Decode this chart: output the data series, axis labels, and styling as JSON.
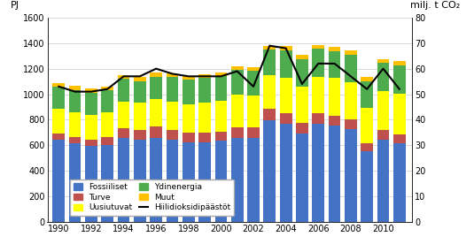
{
  "years": [
    1990,
    1991,
    1992,
    1993,
    1994,
    1995,
    1996,
    1997,
    1998,
    1999,
    2000,
    2001,
    2002,
    2003,
    2004,
    2005,
    2006,
    2007,
    2008,
    2009,
    2010,
    2011
  ],
  "fossiiliset": [
    640,
    615,
    595,
    605,
    655,
    640,
    660,
    640,
    625,
    625,
    635,
    655,
    655,
    795,
    765,
    695,
    765,
    755,
    725,
    555,
    645,
    615
  ],
  "turve": [
    55,
    50,
    50,
    58,
    78,
    78,
    88,
    78,
    73,
    73,
    73,
    83,
    83,
    88,
    88,
    83,
    83,
    78,
    78,
    58,
    73,
    73
  ],
  "uusiutuvat": [
    188,
    193,
    193,
    198,
    208,
    213,
    213,
    223,
    223,
    238,
    243,
    258,
    253,
    268,
    278,
    278,
    288,
    293,
    293,
    278,
    308,
    318
  ],
  "ydinenergia": [
    173,
    173,
    173,
    168,
    178,
    173,
    173,
    193,
    193,
    193,
    193,
    193,
    193,
    198,
    213,
    218,
    218,
    213,
    213,
    213,
    218,
    218
  ],
  "muut": [
    33,
    33,
    33,
    28,
    33,
    33,
    33,
    28,
    28,
    28,
    28,
    28,
    28,
    28,
    33,
    33,
    33,
    33,
    33,
    28,
    33,
    33
  ],
  "co2": [
    53,
    51,
    51,
    52,
    57,
    57,
    60,
    58,
    57,
    57,
    57,
    59,
    53,
    69,
    68,
    54,
    62,
    62,
    57,
    52,
    60,
    52
  ],
  "colors": {
    "fossiiliset": "#4472C4",
    "turve": "#C0504D",
    "uusiutuvat": "#FFFF00",
    "ydinenergia": "#4EAC4E",
    "muut": "#FFC000",
    "co2_line": "#000000"
  },
  "ylim_left": [
    0,
    1600
  ],
  "ylim_right": [
    0,
    80
  ],
  "ylabel_left": "PJ",
  "ylabel_right": "milj. t CO₂",
  "yticks_left": [
    0,
    200,
    400,
    600,
    800,
    1000,
    1200,
    1400,
    1600
  ],
  "yticks_right": [
    0,
    10,
    20,
    30,
    40,
    50,
    60,
    70,
    80
  ],
  "legend_labels": [
    "Fossiiliset",
    "Turve",
    "Uusiutuvat",
    "Ydinenergia",
    "Muut",
    "Hiilidioksidipäästöt"
  ],
  "background_color": "#ffffff",
  "bar_width": 0.75
}
